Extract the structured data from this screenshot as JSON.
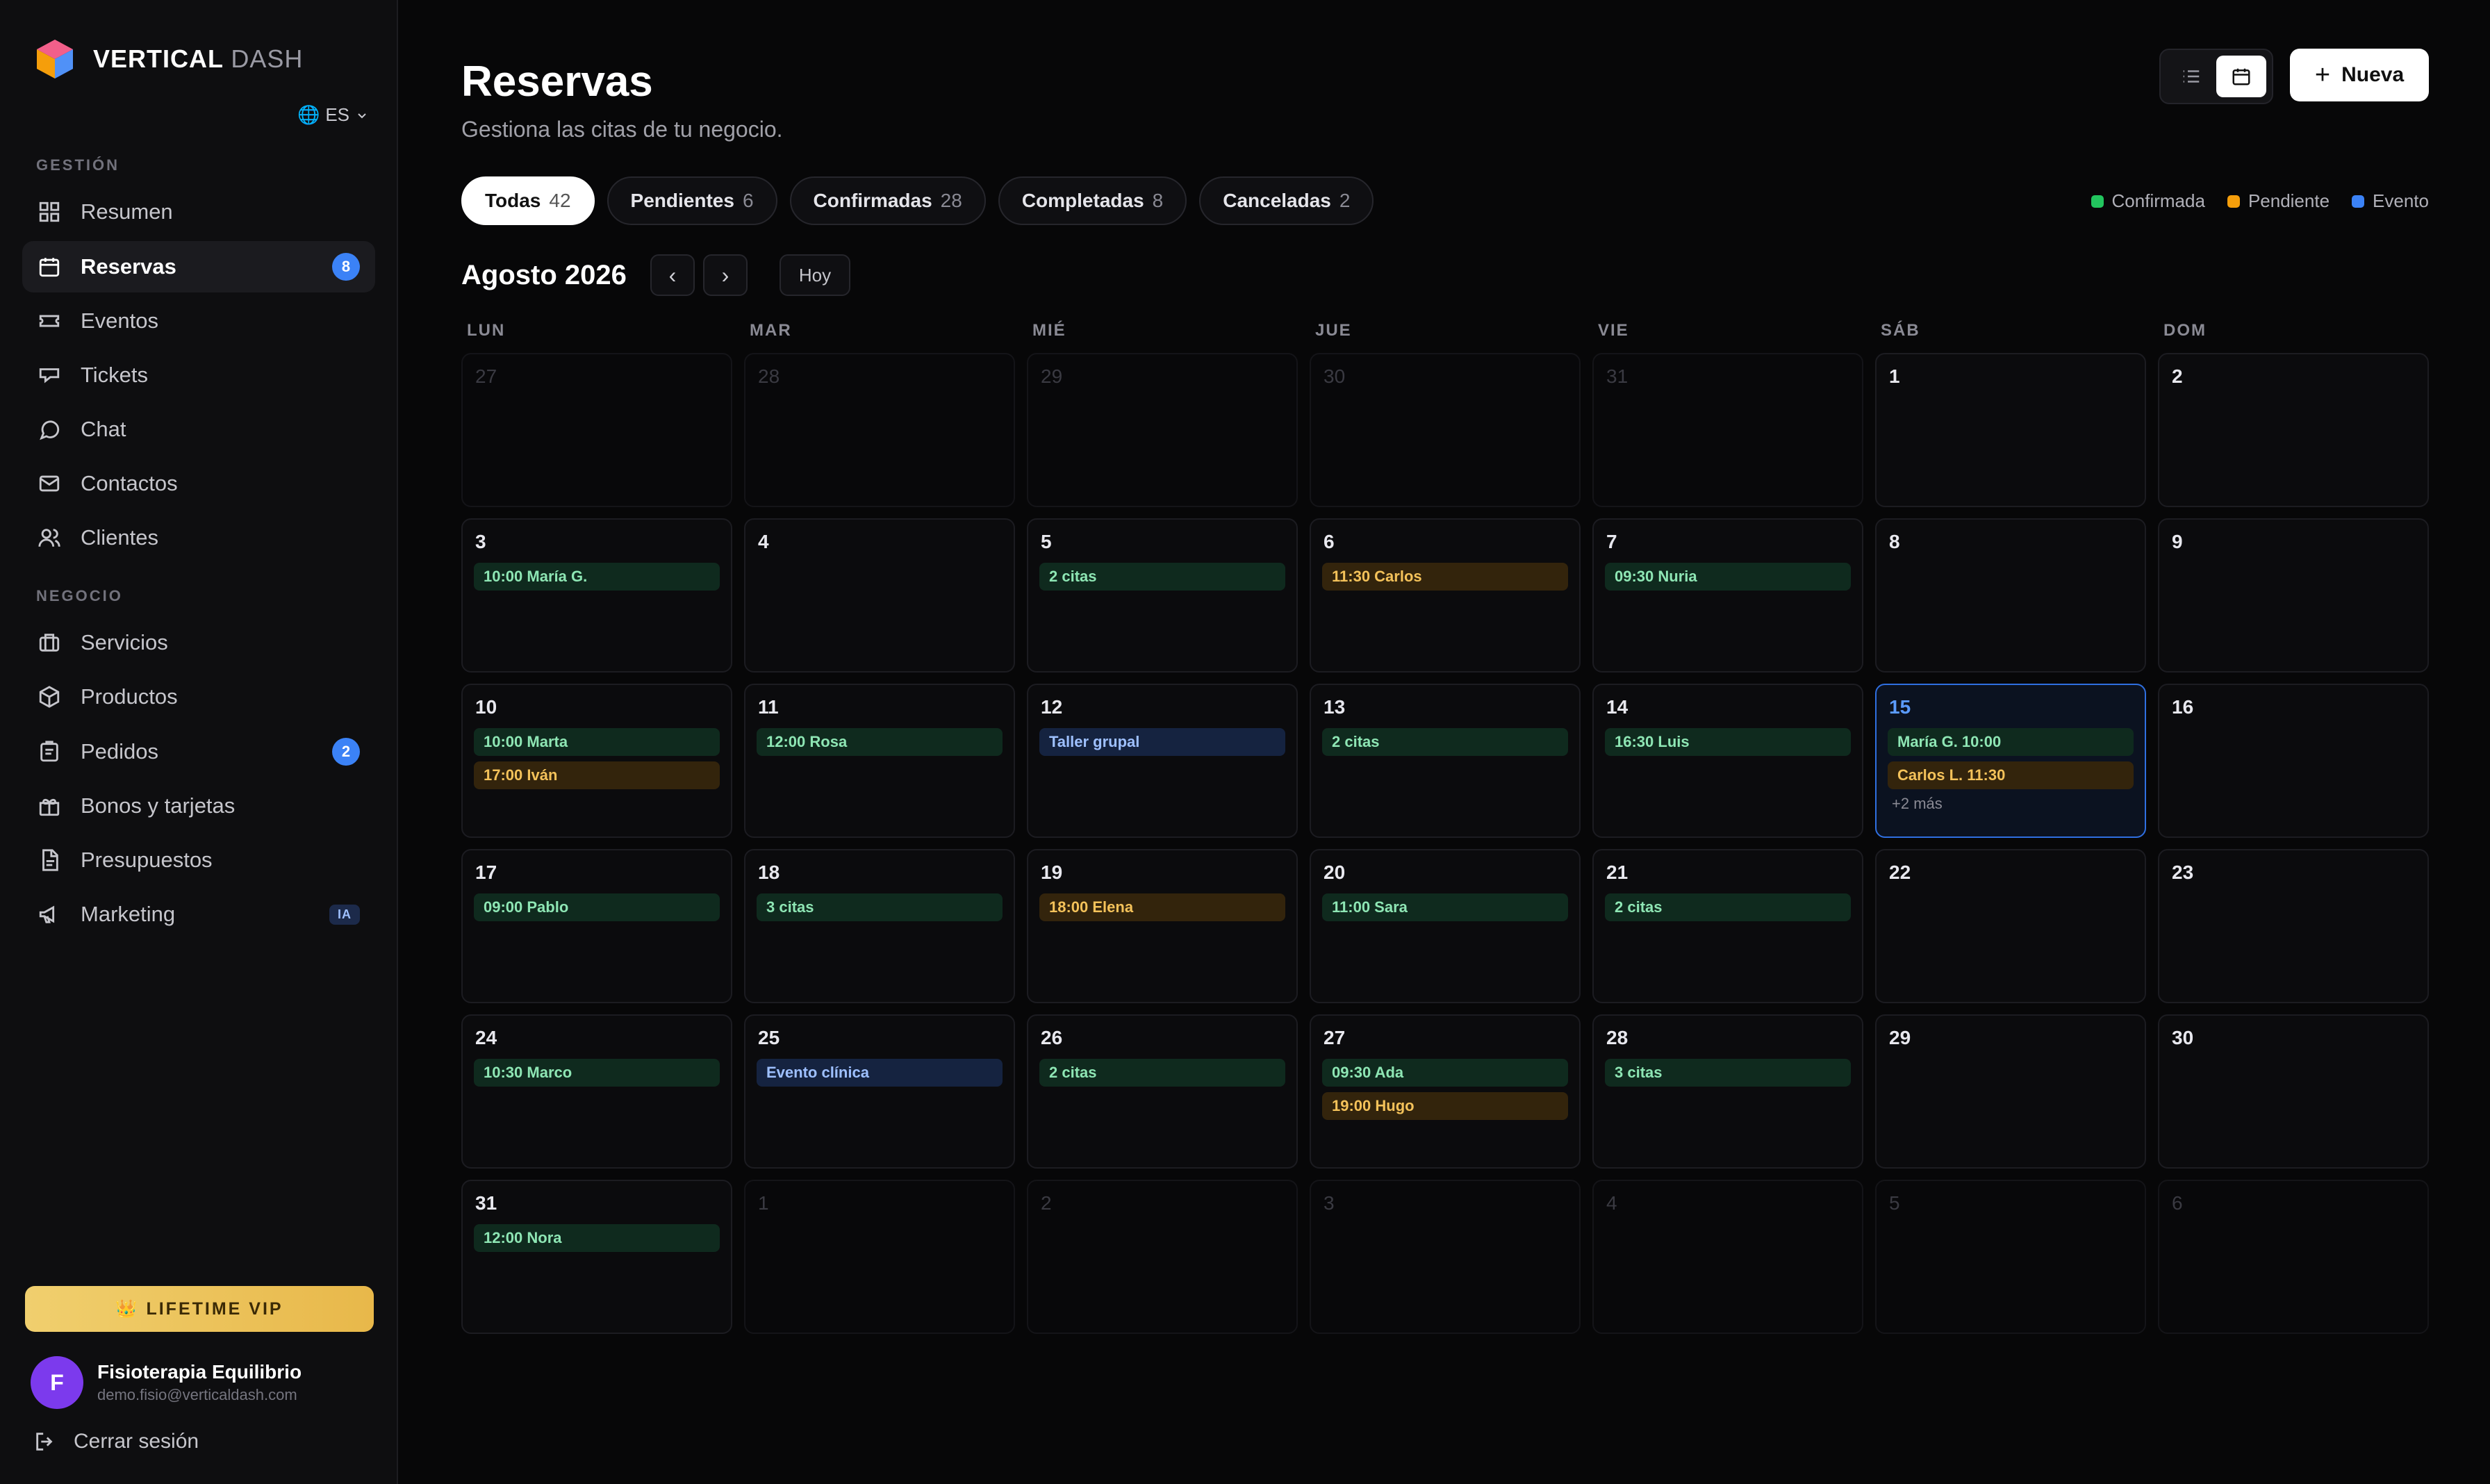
{
  "brand": {
    "name": "VERTICAL",
    "suffix": "DASH",
    "language": "ES"
  },
  "sidebar": {
    "sections": [
      {
        "label": "GESTIÓN"
      },
      {
        "label": "NEGOCIO"
      }
    ],
    "items": [
      {
        "label": "Resumen",
        "icon": "grid-icon"
      },
      {
        "label": "Reservas",
        "icon": "calendar-icon",
        "badge": "8",
        "active": true
      },
      {
        "label": "Eventos",
        "icon": "ticket-icon"
      },
      {
        "label": "Tickets",
        "icon": "support-icon"
      },
      {
        "label": "Chat",
        "icon": "chat-icon"
      },
      {
        "label": "Contactos",
        "icon": "mail-icon"
      },
      {
        "label": "Clientes",
        "icon": "users-icon"
      },
      {
        "label": "Servicios",
        "icon": "briefcase-icon"
      },
      {
        "label": "Productos",
        "icon": "box-icon"
      },
      {
        "label": "Pedidos",
        "icon": "clipboard-icon",
        "badge": "2"
      },
      {
        "label": "Bonos y tarjetas",
        "icon": "gift-icon"
      },
      {
        "label": "Presupuestos",
        "icon": "document-icon"
      },
      {
        "label": "Marketing",
        "icon": "megaphone-icon",
        "tag": "IA"
      }
    ],
    "vip_label": "👑 LIFETIME VIP",
    "user": {
      "initial": "F",
      "name": "Fisioterapia Equilibrio",
      "email": "demo.fisio@verticaldash.com"
    },
    "logout_label": "Cerrar sesión"
  },
  "header": {
    "title": "Reservas",
    "subtitle": "Gestiona las citas de tu negocio.",
    "new_button": "Nueva"
  },
  "filters": [
    {
      "label": "Todas",
      "count": "42",
      "active": true
    },
    {
      "label": "Pendientes",
      "count": "6"
    },
    {
      "label": "Confirmadas",
      "count": "28"
    },
    {
      "label": "Completadas",
      "count": "8"
    },
    {
      "label": "Canceladas",
      "count": "2"
    }
  ],
  "legend": [
    {
      "label": "Confirmada",
      "color": "#22c55e"
    },
    {
      "label": "Pendiente",
      "color": "#f59e0b"
    },
    {
      "label": "Evento",
      "color": "#3b82f6"
    }
  ],
  "calendar": {
    "month": "Agosto 2026",
    "today_label": "Hoy",
    "weekdays": [
      "LUN",
      "MAR",
      "MIÉ",
      "JUE",
      "VIE",
      "SÁB",
      "DOM"
    ],
    "days": [
      {
        "d": "27",
        "out": true
      },
      {
        "d": "28",
        "out": true
      },
      {
        "d": "29",
        "out": true
      },
      {
        "d": "30",
        "out": true
      },
      {
        "d": "31",
        "out": true
      },
      {
        "d": "1"
      },
      {
        "d": "2"
      },
      {
        "d": "3",
        "events": [
          {
            "t": "10:00 María G.",
            "c": "green"
          }
        ]
      },
      {
        "d": "4"
      },
      {
        "d": "5",
        "events": [
          {
            "t": "2 citas",
            "c": "green"
          }
        ]
      },
      {
        "d": "6",
        "events": [
          {
            "t": "11:30 Carlos",
            "c": "amber"
          }
        ]
      },
      {
        "d": "7",
        "events": [
          {
            "t": "09:30 Nuria",
            "c": "green"
          }
        ]
      },
      {
        "d": "8"
      },
      {
        "d": "9"
      },
      {
        "d": "10",
        "events": [
          {
            "t": "10:00 Marta",
            "c": "green"
          },
          {
            "t": "17:00 Iván",
            "c": "amber"
          }
        ]
      },
      {
        "d": "11",
        "events": [
          {
            "t": "12:00 Rosa",
            "c": "green"
          }
        ]
      },
      {
        "d": "12",
        "events": [
          {
            "t": "Taller grupal",
            "c": "blue"
          }
        ]
      },
      {
        "d": "13",
        "events": [
          {
            "t": "2 citas",
            "c": "green"
          }
        ]
      },
      {
        "d": "14",
        "events": [
          {
            "t": "16:30 Luis",
            "c": "green"
          }
        ]
      },
      {
        "d": "15",
        "today": true,
        "events": [
          {
            "t": "María G. 10:00",
            "c": "green"
          },
          {
            "t": "Carlos L. 11:30",
            "c": "amber"
          }
        ],
        "more": "+2 más"
      },
      {
        "d": "16"
      },
      {
        "d": "17",
        "events": [
          {
            "t": "09:00 Pablo",
            "c": "green"
          }
        ]
      },
      {
        "d": "18",
        "events": [
          {
            "t": "3 citas",
            "c": "green"
          }
        ]
      },
      {
        "d": "19",
        "events": [
          {
            "t": "18:00 Elena",
            "c": "amber"
          }
        ]
      },
      {
        "d": "20",
        "events": [
          {
            "t": "11:00 Sara",
            "c": "green"
          }
        ]
      },
      {
        "d": "21",
        "events": [
          {
            "t": "2 citas",
            "c": "green"
          }
        ]
      },
      {
        "d": "22"
      },
      {
        "d": "23"
      },
      {
        "d": "24",
        "events": [
          {
            "t": "10:30 Marco",
            "c": "green"
          }
        ]
      },
      {
        "d": "25",
        "events": [
          {
            "t": "Evento clínica",
            "c": "blue"
          }
        ]
      },
      {
        "d": "26",
        "events": [
          {
            "t": "2 citas",
            "c": "green"
          }
        ]
      },
      {
        "d": "27",
        "events": [
          {
            "t": "09:30 Ada",
            "c": "green"
          },
          {
            "t": "19:00 Hugo",
            "c": "amber"
          }
        ]
      },
      {
        "d": "28",
        "events": [
          {
            "t": "3 citas",
            "c": "green"
          }
        ]
      },
      {
        "d": "29"
      },
      {
        "d": "30"
      },
      {
        "d": "31",
        "events": [
          {
            "t": "12:00 Nora",
            "c": "green"
          }
        ]
      },
      {
        "d": "1",
        "out": true
      },
      {
        "d": "2",
        "out": true
      },
      {
        "d": "3",
        "out": true
      },
      {
        "d": "4",
        "out": true
      },
      {
        "d": "5",
        "out": true
      },
      {
        "d": "6",
        "out": true
      }
    ]
  }
}
